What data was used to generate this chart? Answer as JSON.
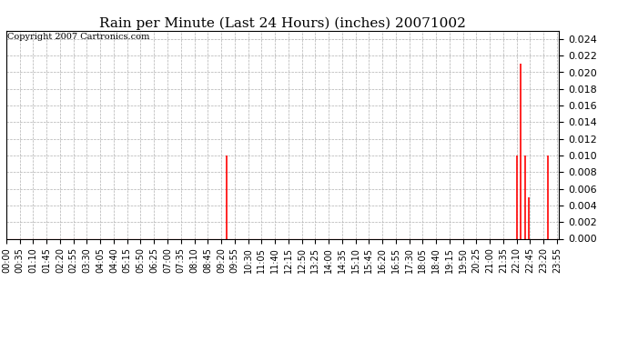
{
  "title": "Rain per Minute (Last 24 Hours) (inches) 20071002",
  "copyright_text": "Copyright 2007 Cartronics.com",
  "background_color": "#ffffff",
  "plot_bg_color": "#ffffff",
  "bar_color": "#ff0000",
  "grid_color": "#b0b0b0",
  "ylim": [
    0.0,
    0.025
  ],
  "yticks": [
    0.0,
    0.002,
    0.004,
    0.006,
    0.008,
    0.01,
    0.012,
    0.014,
    0.016,
    0.018,
    0.02,
    0.022,
    0.024
  ],
  "total_minutes": 1440,
  "spikes": [
    {
      "minute": 575,
      "value": 0.01
    },
    {
      "minute": 1331,
      "value": 0.01
    },
    {
      "minute": 1341,
      "value": 0.021
    },
    {
      "minute": 1351,
      "value": 0.01
    },
    {
      "minute": 1361,
      "value": 0.005
    },
    {
      "minute": 1411,
      "value": 0.01
    }
  ],
  "tick_interval_minutes": 35,
  "title_fontsize": 11,
  "copyright_fontsize": 7,
  "tick_fontsize": 7,
  "ytick_fontsize": 8
}
